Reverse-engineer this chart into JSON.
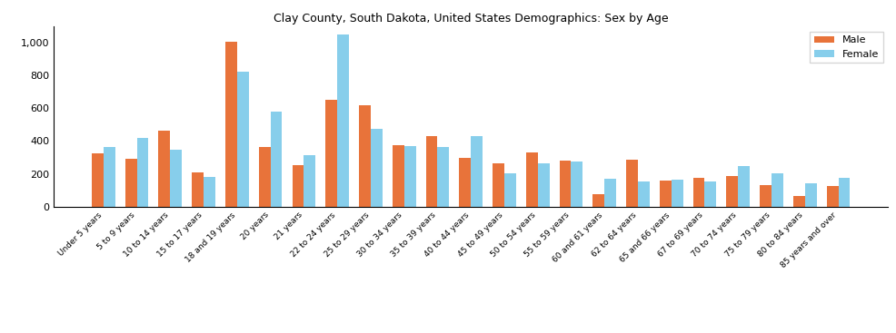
{
  "categories": [
    "Under 5 years",
    "5 to 9 years",
    "10 to 14 years",
    "15 to 17 years",
    "18 and 19 years",
    "20 years",
    "21 years",
    "22 to 24 years",
    "25 to 29 years",
    "30 to 34 years",
    "35 to 39 years",
    "40 to 44 years",
    "45 to 49 years",
    "50 to 54 years",
    "55 to 59 years",
    "60 and 61 years",
    "62 to 64 years",
    "65 and 66 years",
    "67 to 69 years",
    "70 to 74 years",
    "75 to 79 years",
    "80 to 84 years",
    "85 years and over"
  ],
  "male": [
    325,
    290,
    465,
    210,
    1005,
    365,
    250,
    655,
    620,
    375,
    430,
    295,
    265,
    330,
    280,
    75,
    285,
    160,
    175,
    185,
    130,
    65,
    125
  ],
  "female": [
    365,
    420,
    345,
    180,
    825,
    580,
    315,
    1050,
    475,
    370,
    365,
    430,
    205,
    265,
    275,
    170,
    155,
    165,
    155,
    245,
    205,
    140,
    175
  ],
  "male_color": "#E8733A",
  "female_color": "#87CEEB",
  "title": "Clay County, South Dakota, United States Demographics: Sex by Age",
  "ylim": [
    0,
    1100
  ],
  "yticks": [
    0,
    200,
    400,
    600,
    800,
    1000
  ],
  "legend_labels": [
    "Male",
    "Female"
  ],
  "bar_width": 0.35,
  "figsize": [
    9.87,
    3.67
  ],
  "dpi": 100
}
